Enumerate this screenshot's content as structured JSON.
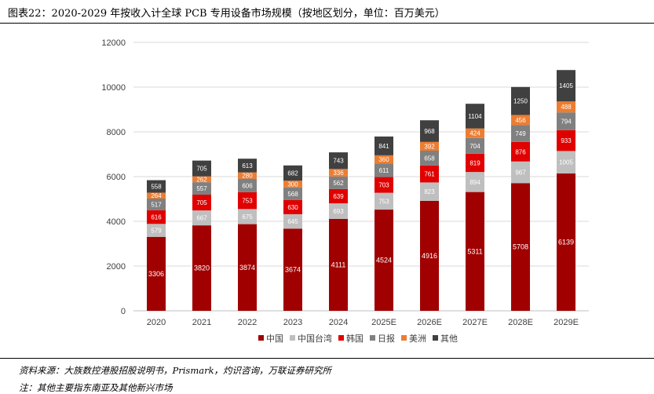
{
  "header": {
    "title": "图表22：2020-2029 年按收入计全球 PCB 专用设备市场规模（按地区划分，单位：百万美元）"
  },
  "footer": {
    "source": "资料来源：大族数控港股招股说明书，Prismark，灼识咨询，万联证券研究所",
    "note": "注：其他主要指东南亚及其他新兴市场"
  },
  "colors": {
    "中国": "#a00000",
    "中国台湾": "#bfbfbf",
    "韩国": "#e00000",
    "日报": "#808080",
    "美洲": "#ed7d31",
    "其他": "#404040"
  },
  "chart_data": {
    "type": "bar",
    "stacked": true,
    "title": "",
    "xlabel": "",
    "ylabel": "",
    "ylim": [
      0,
      12000
    ],
    "yticks": [
      0,
      2000,
      4000,
      6000,
      8000,
      10000,
      12000
    ],
    "grid": true,
    "legend_position": "bottom",
    "categories": [
      "2020",
      "2021",
      "2022",
      "2023",
      "2024",
      "2025E",
      "2026E",
      "2027E",
      "2028E",
      "2029E"
    ],
    "series": [
      {
        "name": "中国",
        "values": [
          3306,
          3820,
          3874,
          3674,
          4111,
          4524,
          4916,
          5311,
          5708,
          6139
        ]
      },
      {
        "name": "中国台湾",
        "values": [
          579,
          667,
          675,
          645,
          693,
          753,
          823,
          894,
          967,
          1005
        ]
      },
      {
        "name": "韩国",
        "values": [
          616,
          705,
          753,
          630,
          639,
          703,
          761,
          819,
          876,
          933
        ]
      },
      {
        "name": "日报",
        "values": [
          517,
          557,
          606,
          568,
          562,
          611,
          658,
          704,
          749,
          794
        ]
      },
      {
        "name": "美洲",
        "values": [
          264,
          262,
          280,
          300,
          336,
          360,
          392,
          424,
          456,
          488
        ]
      },
      {
        "name": "其他",
        "values": [
          558,
          705,
          613,
          682,
          743,
          841,
          968,
          1104,
          1250,
          1405
        ]
      }
    ]
  }
}
